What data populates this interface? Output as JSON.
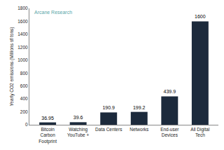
{
  "chart_data": {
    "type": "bar",
    "annotations": [
      "Arcane Research"
    ],
    "y_label": "Yearly CO2 emissions (Millions of tons)",
    "categories": [
      "Bitcoin Carbon Footprint",
      "Watching YouTube +",
      "Data Centers",
      "Networks",
      "End-user Devices",
      "All Digital Tech"
    ],
    "values": [
      36.95,
      39.6,
      190.9,
      199.2,
      439.9,
      1600
    ],
    "color": "#1c2a3c",
    "ylim": [
      0,
      1800
    ],
    "yticks": [
      0,
      200,
      400,
      600,
      800,
      1000,
      1200,
      1400,
      1600,
      1800
    ],
    "grid": false,
    "data_labels": true
  }
}
